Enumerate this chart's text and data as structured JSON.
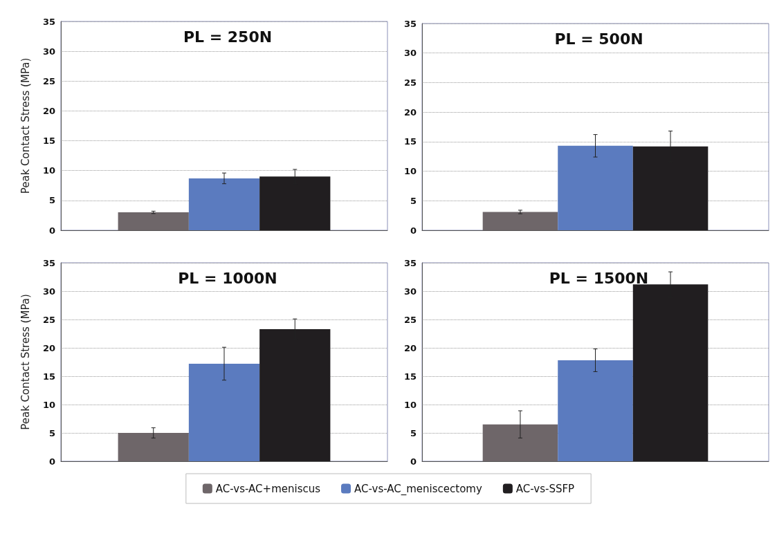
{
  "chart_data": [
    {
      "type": "bar",
      "title": "PL = 250N",
      "ylabel": "Peak Contact Stress (MPa)",
      "categories": [
        null
      ],
      "series": [
        {
          "color": "#6e6669",
          "values": [
            3.0
          ],
          "errors": [
            0.2
          ]
        },
        {
          "color": "#5b7bbf",
          "values": [
            8.7
          ],
          "errors": [
            0.9
          ]
        },
        {
          "color": "#211e20",
          "values": [
            9.0
          ],
          "errors": [
            1.2
          ]
        }
      ],
      "ylim": [
        0,
        35
      ],
      "yticks": [
        0,
        5,
        10,
        15,
        20,
        25,
        30,
        35
      ],
      "grid": "y",
      "legend": false
    },
    {
      "type": "bar",
      "title": "PL = 500N",
      "categories": [
        null
      ],
      "series": [
        {
          "color": "#6e6669",
          "values": [
            3.1
          ],
          "errors": [
            0.3
          ]
        },
        {
          "color": "#5b7bbf",
          "values": [
            14.3
          ],
          "errors": [
            1.9
          ]
        },
        {
          "color": "#211e20",
          "values": [
            14.2
          ],
          "errors": [
            2.6
          ]
        }
      ],
      "ylim": [
        0,
        35
      ],
      "yticks": [
        0,
        5,
        10,
        15,
        20,
        25,
        30,
        35
      ],
      "grid": "y",
      "legend": false
    },
    {
      "type": "bar",
      "title": "PL = 1000N",
      "ylabel": "Peak Contact Stress (MPa)",
      "categories": [
        null
      ],
      "series": [
        {
          "name": "AC-vs-AC+meniscus",
          "color": "#6e6669",
          "values": [
            5.0
          ],
          "errors": [
            0.9
          ]
        },
        {
          "name": "AC-vs-AC_meniscectomy",
          "color": "#5b7bbf",
          "values": [
            17.2
          ],
          "errors": [
            2.9
          ]
        },
        {
          "name": "AC-vs-SSFP",
          "color": "#211e20",
          "values": [
            23.3
          ],
          "errors": [
            1.8
          ]
        }
      ],
      "ylim": [
        0,
        35
      ],
      "yticks": [
        0,
        5,
        10,
        15,
        20,
        25,
        30,
        35
      ],
      "grid": "y",
      "legend": "bottom"
    },
    {
      "type": "bar",
      "title": "PL = 1500N",
      "categories": [
        null
      ],
      "series": [
        {
          "color": "#6e6669",
          "values": [
            6.5
          ],
          "errors": [
            2.4
          ]
        },
        {
          "color": "#5b7bbf",
          "values": [
            17.8
          ],
          "errors": [
            2.0
          ]
        },
        {
          "color": "#211e20",
          "values": [
            31.2
          ],
          "errors": [
            2.2
          ]
        }
      ],
      "ylim": [
        0,
        35
      ],
      "yticks": [
        0,
        5,
        10,
        15,
        20,
        25,
        30,
        35
      ],
      "grid": "y",
      "legend": false
    }
  ]
}
